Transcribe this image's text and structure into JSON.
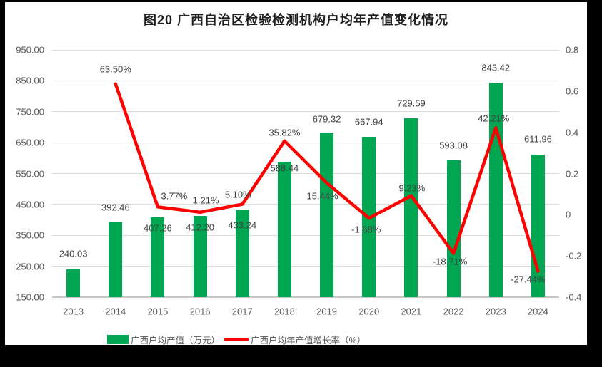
{
  "title": "图20 广西自治区检验检测机构户均年产值变化情况",
  "colors": {
    "bar_green": "#00A651",
    "line_red": "#FE0000",
    "gridline": "#DCDCDC",
    "axis_line": "#C6C6C6",
    "axis_text": "#595959",
    "label_text": "#404040",
    "page_edge": "#000000"
  },
  "chart_data": {
    "type": "bar",
    "subtype": "combo-bar-line-dual-axis",
    "title": "图20 广西自治区检验检测机构户均年产值变化情况",
    "categories": [
      "2013",
      "2014",
      "2015",
      "2016",
      "2017",
      "2018",
      "2019",
      "2020",
      "2021",
      "2022",
      "2023",
      "2024"
    ],
    "series": [
      {
        "name": "广西户均产值（万元）",
        "type": "bar",
        "axis": "left",
        "color": "#00A651",
        "values": [
          240.03,
          392.46,
          407.26,
          412.2,
          433.24,
          588.44,
          679.32,
          667.94,
          729.59,
          593.08,
          843.42,
          611.96
        ],
        "labels": [
          "240.03",
          "392.46",
          "407.26",
          "412.20",
          "433.24",
          "588.44",
          "679.32",
          "667.94",
          "729.59",
          "593.08",
          "843.42",
          "611.96"
        ]
      },
      {
        "name": "广西户均年产值增长率（%）",
        "type": "line",
        "axis": "right",
        "color": "#FE0000",
        "values": [
          null,
          0.635,
          0.0377,
          0.0121,
          0.051,
          0.3582,
          0.1544,
          -0.0168,
          0.0923,
          -0.1871,
          0.4221,
          -0.2744
        ],
        "labels": [
          null,
          "63.50%",
          "3.77%",
          "1.21%",
          "5.10%",
          "35.82%",
          "15.44%",
          "-1.68%",
          "9.23%",
          "-18.71%",
          "42.21%",
          "-27.44%"
        ]
      }
    ],
    "left_axis": {
      "min": 150,
      "max": 950,
      "step": 100,
      "ticks": [
        "950.00",
        "850.00",
        "750.00",
        "650.00",
        "550.00",
        "450.00",
        "350.00",
        "250.00",
        "150.00"
      ]
    },
    "right_axis": {
      "min": -0.4,
      "max": 0.8,
      "step": 0.2,
      "ticks": [
        "0.8",
        "0.6",
        "0.4",
        "0.2",
        "0",
        "-0.2",
        "-0.4"
      ]
    },
    "grid": true,
    "legend_position": "bottom",
    "legend": [
      {
        "swatch": "bar",
        "label": "广西户均产值（万元）"
      },
      {
        "swatch": "line",
        "label": "广西户均年产值增长率（%）"
      }
    ]
  }
}
